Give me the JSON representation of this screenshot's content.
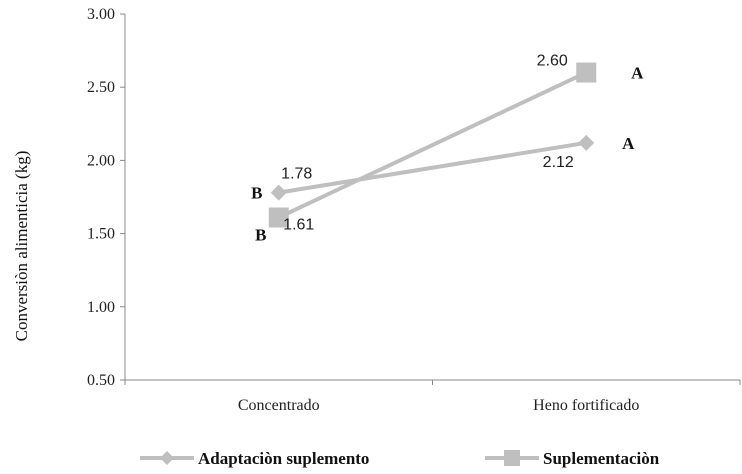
{
  "chart_data": {
    "type": "line",
    "categories": [
      "Concentrado",
      "Heno fortificado"
    ],
    "ylabel": "Conversiòn alimenticia (kg)",
    "xlabel": "",
    "ylim": [
      0.5,
      3.0
    ],
    "yticks": [
      "0.50",
      "1.00",
      "1.50",
      "2.00",
      "2.50",
      "3.00"
    ],
    "grid": false,
    "legend_position": "bottom",
    "series": [
      {
        "name": "Adaptaciòn suplemento",
        "marker": "diamond",
        "color": "#bfbfbf",
        "values": [
          1.78,
          2.12
        ],
        "value_labels": [
          "1.78",
          "2.12"
        ],
        "significance": [
          "B",
          "A"
        ]
      },
      {
        "name": "Suplementaciòn",
        "marker": "square",
        "color": "#bfbfbf",
        "values": [
          1.61,
          2.6
        ],
        "value_labels": [
          "1.61",
          "2.60"
        ],
        "significance": [
          "B",
          "A"
        ]
      }
    ]
  }
}
